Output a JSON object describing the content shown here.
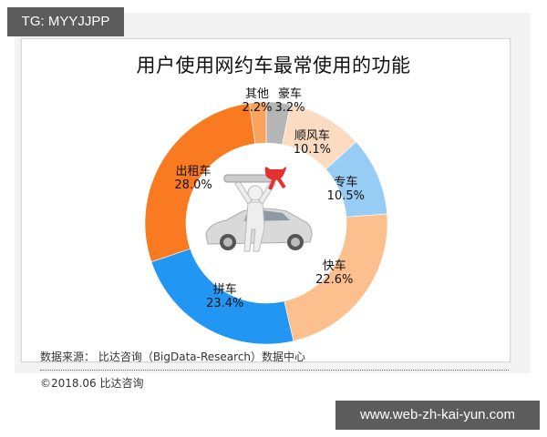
{
  "watermark_top": "TG: MYYJJPP",
  "watermark_bottom": "www.web-zh-kai-yun.com",
  "title": "用户使用网约车最常使用的功能",
  "footer": {
    "source": "数据来源： 比达咨询（BigData-Research）数据中心",
    "copyright": "©2018.06  比达咨询"
  },
  "chart_data": {
    "type": "pie",
    "subtype": "donut",
    "title": "用户使用网约车最常使用的功能",
    "start_angle": "12 o'clock, clockwise",
    "categories": [
      "豪车",
      "顺风车",
      "专车",
      "快车",
      "拼车",
      "出租车",
      "其他"
    ],
    "values": [
      3.2,
      10.1,
      10.5,
      22.6,
      23.4,
      28.0,
      2.2
    ],
    "labels": [
      "3.2%",
      "10.1%",
      "10.5%",
      "22.6%",
      "23.4%",
      "28.0%",
      "2.2%"
    ],
    "colors": [
      "#b5b5b5",
      "#fbdcc2",
      "#97cdf5",
      "#fcc08e",
      "#2196f3",
      "#f97a20",
      "#f9a35d"
    ],
    "legend": "none (labels on slices)",
    "center_image": "person holding car key with red bow, silver car"
  },
  "slices": [
    {
      "name": "豪车",
      "pct": "3.2%"
    },
    {
      "name": "顺风车",
      "pct": "10.1%"
    },
    {
      "name": "专车",
      "pct": "10.5%"
    },
    {
      "name": "快车",
      "pct": "22.6%"
    },
    {
      "name": "拼车",
      "pct": "23.4%"
    },
    {
      "name": "出租车",
      "pct": "28.0%"
    },
    {
      "name": "其他",
      "pct": "2.2%"
    }
  ]
}
